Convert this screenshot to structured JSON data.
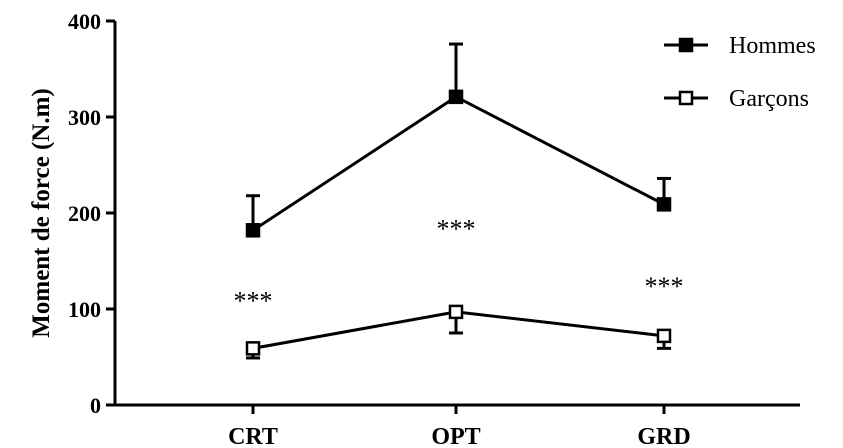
{
  "chart_data": {
    "type": "line",
    "title": "",
    "xlabel": "",
    "ylabel": "Moment de force (N.m)",
    "categories": [
      "CRT",
      "OPT",
      "GRD"
    ],
    "ylim": [
      0,
      400
    ],
    "yticks": [
      0,
      100,
      200,
      300,
      400
    ],
    "ytick_labels": [
      "0",
      "100",
      "200",
      "300",
      "400"
    ],
    "grid": false,
    "legend_position": "top-right",
    "series": [
      {
        "name": "Hommes",
        "marker": "filled-square",
        "values": [
          182,
          321,
          209
        ],
        "error_up": [
          36,
          55,
          27
        ],
        "error_down": [
          0,
          0,
          0
        ]
      },
      {
        "name": "Garçons",
        "marker": "open-square",
        "values": [
          59,
          97,
          72
        ],
        "error_up": [
          0,
          0,
          0
        ],
        "error_down": [
          10,
          22,
          13
        ]
      }
    ],
    "annotations": [
      {
        "text": "***",
        "category": "CRT",
        "y": 110
      },
      {
        "text": "***",
        "category": "OPT",
        "y": 185
      },
      {
        "text": "***",
        "category": "GRD",
        "y": 125
      }
    ],
    "colors": {
      "line": "#000000",
      "background": "#ffffff"
    }
  }
}
